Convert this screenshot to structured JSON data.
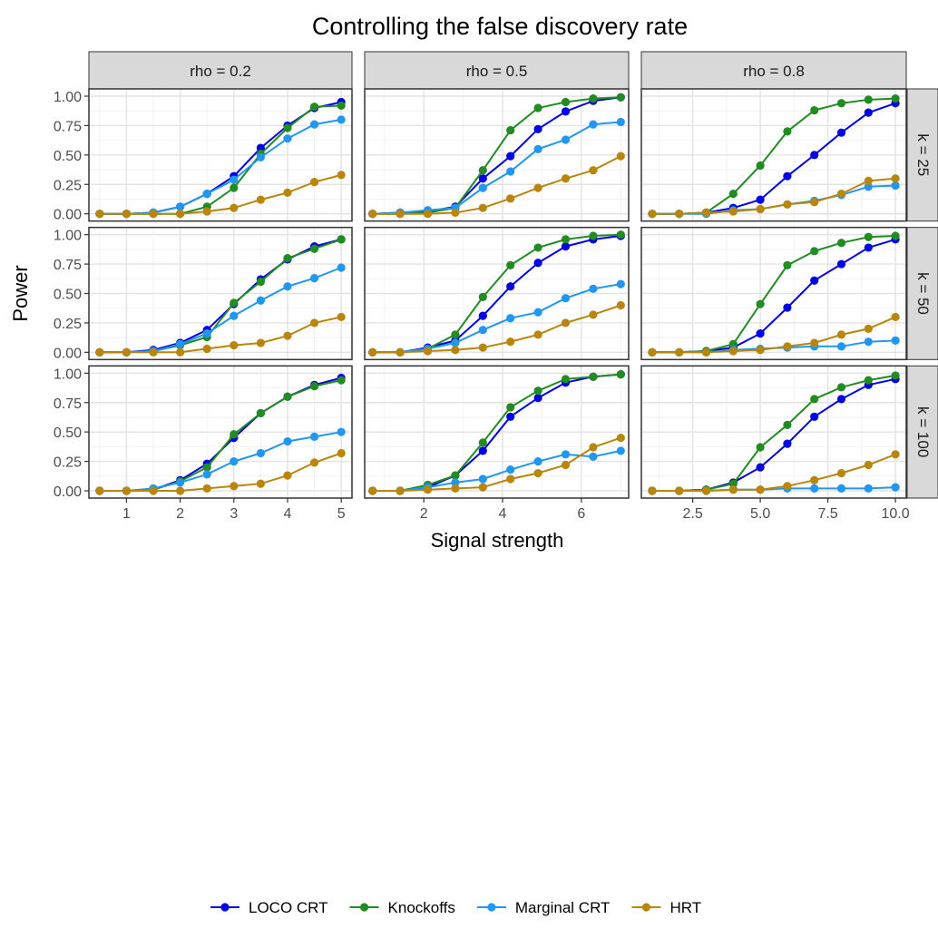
{
  "chart_data": {
    "type": "line",
    "title": "Controlling the false discovery rate",
    "xlabel": "Signal strength",
    "ylabel": "Power",
    "ylim": [
      0,
      1
    ],
    "yticks": [
      "0.00",
      "0.25",
      "0.50",
      "0.75",
      "1.00"
    ],
    "grid": true,
    "legend_position": "bottom",
    "col_facets": [
      "rho = 0.2",
      "rho = 0.5",
      "rho = 0.8"
    ],
    "row_facets": [
      "k = 25",
      "k = 50",
      "k = 100"
    ],
    "series_styles": [
      {
        "name": "LOCO CRT",
        "color": "#0000e6"
      },
      {
        "name": "Knockoffs",
        "color": "#228b22"
      },
      {
        "name": "Marginal CRT",
        "color": "#2196f3"
      },
      {
        "name": "HRT",
        "color": "#b8860b"
      }
    ],
    "columns": [
      {
        "xlim": [
          0.3,
          5.2
        ],
        "xticks": [
          1,
          2,
          3,
          4,
          5
        ],
        "xtick_labels": [
          "1",
          "2",
          "3",
          "4",
          "5"
        ],
        "x": [
          0.5,
          1,
          1.5,
          2,
          2.5,
          3,
          3.5,
          4,
          4.5,
          5
        ]
      },
      {
        "xlim": [
          0.5,
          7.2
        ],
        "xticks": [
          2,
          4,
          6
        ],
        "xtick_labels": [
          "2",
          "4",
          "6"
        ],
        "x": [
          0.7,
          1.4,
          2.1,
          2.8,
          3.5,
          4.2,
          4.9,
          5.6,
          6.3,
          7.0
        ]
      },
      {
        "xlim": [
          0.6,
          10.4
        ],
        "xticks": [
          2.5,
          5,
          7.5,
          10
        ],
        "xtick_labels": [
          "2.5",
          "5.0",
          "7.5",
          "10.0"
        ],
        "x": [
          1,
          2,
          3,
          4,
          5,
          6,
          7,
          8,
          9,
          10
        ]
      }
    ],
    "panels": [
      {
        "row": 0,
        "col": 0,
        "series": [
          {
            "name": "LOCO CRT",
            "values": [
              0,
              0,
              0.01,
              0.06,
              0.17,
              0.32,
              0.56,
              0.75,
              0.9,
              0.95
            ]
          },
          {
            "name": "Knockoffs",
            "values": [
              0,
              0,
              0,
              0,
              0.06,
              0.22,
              0.51,
              0.73,
              0.91,
              0.92
            ]
          },
          {
            "name": "Marginal CRT",
            "values": [
              0,
              0,
              0.01,
              0.06,
              0.17,
              0.29,
              0.48,
              0.64,
              0.76,
              0.8
            ]
          },
          {
            "name": "HRT",
            "values": [
              0,
              0,
              0,
              0,
              0.02,
              0.05,
              0.12,
              0.18,
              0.27,
              0.33
            ]
          }
        ]
      },
      {
        "row": 0,
        "col": 1,
        "series": [
          {
            "name": "LOCO CRT",
            "values": [
              0,
              0.01,
              0.02,
              0.06,
              0.3,
              0.49,
              0.72,
              0.87,
              0.96,
              0.99
            ]
          },
          {
            "name": "Knockoffs",
            "values": [
              0,
              0,
              0.01,
              0.05,
              0.37,
              0.71,
              0.9,
              0.95,
              0.98,
              0.99
            ]
          },
          {
            "name": "Marginal CRT",
            "values": [
              0,
              0.01,
              0.03,
              0.05,
              0.22,
              0.36,
              0.55,
              0.63,
              0.76,
              0.78
            ]
          },
          {
            "name": "HRT",
            "values": [
              0,
              0,
              0,
              0.01,
              0.05,
              0.13,
              0.22,
              0.3,
              0.37,
              0.49
            ]
          }
        ]
      },
      {
        "row": 0,
        "col": 2,
        "series": [
          {
            "name": "LOCO CRT",
            "values": [
              0,
              0,
              0.01,
              0.05,
              0.12,
              0.32,
              0.5,
              0.69,
              0.86,
              0.94
            ]
          },
          {
            "name": "Knockoffs",
            "values": [
              0,
              0,
              0.01,
              0.17,
              0.41,
              0.7,
              0.88,
              0.94,
              0.97,
              0.98
            ]
          },
          {
            "name": "Marginal CRT",
            "values": [
              0,
              0,
              0,
              0.03,
              0.04,
              0.08,
              0.11,
              0.16,
              0.23,
              0.24
            ]
          },
          {
            "name": "HRT",
            "values": [
              0,
              0,
              0.01,
              0.02,
              0.04,
              0.08,
              0.1,
              0.17,
              0.28,
              0.3
            ]
          }
        ]
      },
      {
        "row": 1,
        "col": 0,
        "series": [
          {
            "name": "LOCO CRT",
            "values": [
              0,
              0,
              0.02,
              0.08,
              0.19,
              0.41,
              0.62,
              0.79,
              0.9,
              0.96
            ]
          },
          {
            "name": "Knockoffs",
            "values": [
              0,
              0,
              0.01,
              0.06,
              0.13,
              0.42,
              0.6,
              0.8,
              0.88,
              0.96
            ]
          },
          {
            "name": "Marginal CRT",
            "values": [
              0,
              0,
              0.01,
              0.07,
              0.16,
              0.31,
              0.44,
              0.56,
              0.63,
              0.72
            ]
          },
          {
            "name": "HRT",
            "values": [
              0,
              0,
              0,
              0,
              0.03,
              0.06,
              0.08,
              0.14,
              0.25,
              0.3
            ]
          }
        ]
      },
      {
        "row": 1,
        "col": 1,
        "series": [
          {
            "name": "LOCO CRT",
            "values": [
              0,
              0,
              0.04,
              0.1,
              0.31,
              0.56,
              0.76,
              0.9,
              0.96,
              0.99
            ]
          },
          {
            "name": "Knockoffs",
            "values": [
              0,
              0,
              0.03,
              0.15,
              0.47,
              0.74,
              0.89,
              0.96,
              0.99,
              1.0
            ]
          },
          {
            "name": "Marginal CRT",
            "values": [
              0,
              0,
              0.03,
              0.08,
              0.19,
              0.29,
              0.34,
              0.46,
              0.54,
              0.58
            ]
          },
          {
            "name": "HRT",
            "values": [
              0,
              0,
              0.01,
              0.02,
              0.04,
              0.09,
              0.15,
              0.25,
              0.32,
              0.4
            ]
          }
        ]
      },
      {
        "row": 1,
        "col": 2,
        "series": [
          {
            "name": "LOCO CRT",
            "values": [
              0,
              0,
              0.01,
              0.04,
              0.16,
              0.38,
              0.61,
              0.75,
              0.89,
              0.96
            ]
          },
          {
            "name": "Knockoffs",
            "values": [
              0,
              0,
              0.01,
              0.07,
              0.41,
              0.74,
              0.86,
              0.93,
              0.98,
              0.99
            ]
          },
          {
            "name": "Marginal CRT",
            "values": [
              0,
              0,
              0,
              0.02,
              0.03,
              0.04,
              0.05,
              0.05,
              0.09,
              0.1
            ]
          },
          {
            "name": "HRT",
            "values": [
              0,
              0,
              0,
              0.01,
              0.02,
              0.05,
              0.08,
              0.15,
              0.2,
              0.3
            ]
          }
        ]
      },
      {
        "row": 2,
        "col": 0,
        "series": [
          {
            "name": "LOCO CRT",
            "values": [
              0,
              0,
              0.01,
              0.09,
              0.23,
              0.45,
              0.66,
              0.8,
              0.9,
              0.96
            ]
          },
          {
            "name": "Knockoffs",
            "values": [
              0,
              0,
              0.01,
              0.08,
              0.2,
              0.48,
              0.66,
              0.8,
              0.89,
              0.94
            ]
          },
          {
            "name": "Marginal CRT",
            "values": [
              0,
              0,
              0.02,
              0.07,
              0.14,
              0.25,
              0.32,
              0.42,
              0.46,
              0.5
            ]
          },
          {
            "name": "HRT",
            "values": [
              0,
              0,
              0,
              0,
              0.02,
              0.04,
              0.06,
              0.13,
              0.24,
              0.32
            ]
          }
        ]
      },
      {
        "row": 2,
        "col": 1,
        "series": [
          {
            "name": "LOCO CRT",
            "values": [
              0,
              0,
              0.03,
              0.13,
              0.34,
              0.63,
              0.79,
              0.92,
              0.97,
              0.99
            ]
          },
          {
            "name": "Knockoffs",
            "values": [
              0,
              0,
              0.05,
              0.13,
              0.41,
              0.71,
              0.85,
              0.95,
              0.97,
              0.99
            ]
          },
          {
            "name": "Marginal CRT",
            "values": [
              0,
              0,
              0.03,
              0.07,
              0.1,
              0.18,
              0.25,
              0.31,
              0.29,
              0.34
            ]
          },
          {
            "name": "HRT",
            "values": [
              0,
              0,
              0.01,
              0.02,
              0.03,
              0.1,
              0.15,
              0.22,
              0.37,
              0.45
            ]
          }
        ]
      },
      {
        "row": 2,
        "col": 2,
        "series": [
          {
            "name": "LOCO CRT",
            "values": [
              0,
              0,
              0.01,
              0.07,
              0.2,
              0.4,
              0.63,
              0.78,
              0.9,
              0.95
            ]
          },
          {
            "name": "Knockoffs",
            "values": [
              0,
              0,
              0.01,
              0.06,
              0.37,
              0.56,
              0.78,
              0.88,
              0.94,
              0.98
            ]
          },
          {
            "name": "Marginal CRT",
            "values": [
              0,
              0,
              0,
              0.01,
              0.01,
              0.02,
              0.02,
              0.02,
              0.02,
              0.03
            ]
          },
          {
            "name": "HRT",
            "values": [
              0,
              0,
              0,
              0.01,
              0.01,
              0.04,
              0.09,
              0.15,
              0.22,
              0.31
            ]
          }
        ]
      }
    ]
  }
}
